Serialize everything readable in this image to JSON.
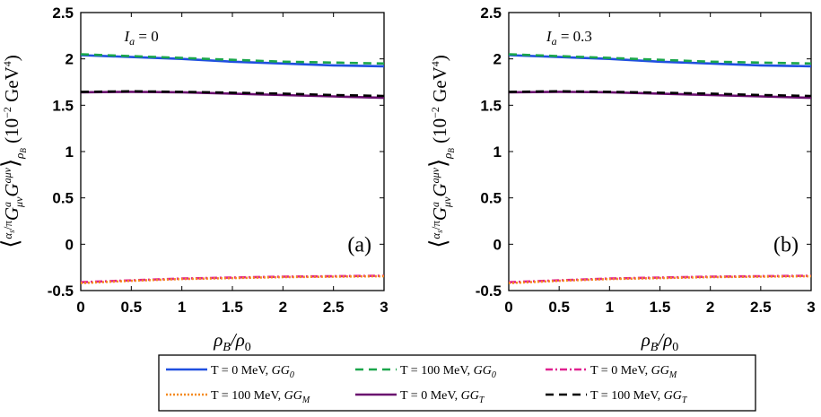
{
  "chart_data": [
    {
      "type": "line",
      "panel_label": "(a)",
      "annotation": "I_a = 0",
      "xlabel": "ρ_B/ρ_0",
      "ylabel": "⟨(α_s/π) G^a_μν G^aμν⟩_ρB  (10^-2 GeV^4)",
      "xlim": [
        0,
        3
      ],
      "ylim": [
        -0.5,
        2.5
      ],
      "xticks": [
        0,
        0.5,
        1,
        1.5,
        2,
        2.5,
        3
      ],
      "yticks": [
        -0.5,
        0,
        0.5,
        1,
        1.5,
        2,
        2.5
      ],
      "xtick_labels": [
        "0",
        "0.5",
        "1",
        "1.5",
        "2",
        "2.5",
        "3"
      ],
      "ytick_labels": [
        "-0.5",
        "0",
        "0.5",
        "1",
        "1.5",
        "2",
        "2.5"
      ],
      "grid": false,
      "x": [
        0,
        0.5,
        1,
        1.5,
        2,
        2.5,
        3
      ],
      "series": [
        {
          "name": "T = 0 MeV, GG_0",
          "values": [
            2.04,
            2.02,
            2.0,
            1.97,
            1.95,
            1.93,
            1.92
          ]
        },
        {
          "name": "T = 100 MeV, GG_0",
          "values": [
            2.05,
            2.03,
            2.01,
            1.99,
            1.97,
            1.96,
            1.95
          ]
        },
        {
          "name": "T = 0 MeV, GG_M",
          "values": [
            -0.41,
            -0.39,
            -0.37,
            -0.36,
            -0.35,
            -0.345,
            -0.34
          ]
        },
        {
          "name": "T = 100 MeV, GG_M",
          "values": [
            -0.42,
            -0.395,
            -0.375,
            -0.365,
            -0.355,
            -0.35,
            -0.345
          ]
        },
        {
          "name": "T = 0 MeV, GG_T",
          "values": [
            1.64,
            1.645,
            1.64,
            1.625,
            1.61,
            1.595,
            1.58
          ]
        },
        {
          "name": "T = 100 MeV, GG_T",
          "values": [
            1.645,
            1.65,
            1.645,
            1.635,
            1.625,
            1.61,
            1.6
          ]
        }
      ]
    },
    {
      "type": "line",
      "panel_label": "(b)",
      "annotation": "I_a = 0.3",
      "xlabel": "ρ_B/ρ_0",
      "ylabel": "⟨(α_s/π) G^a_μν G^aμν⟩_ρB  (10^-2 GeV^4)",
      "xlim": [
        0,
        3
      ],
      "ylim": [
        -0.5,
        2.5
      ],
      "xticks": [
        0,
        0.5,
        1,
        1.5,
        2,
        2.5,
        3
      ],
      "yticks": [
        -0.5,
        0,
        0.5,
        1,
        1.5,
        2,
        2.5
      ],
      "xtick_labels": [
        "0",
        "0.5",
        "1",
        "1.5",
        "2",
        "2.5",
        "3"
      ],
      "ytick_labels": [
        "-0.5",
        "0",
        "0.5",
        "1",
        "1.5",
        "2",
        "2.5"
      ],
      "grid": false,
      "x": [
        0,
        0.5,
        1,
        1.5,
        2,
        2.5,
        3
      ],
      "series": [
        {
          "name": "T = 0 MeV, GG_0",
          "values": [
            2.04,
            2.02,
            2.0,
            1.97,
            1.95,
            1.93,
            1.92
          ]
        },
        {
          "name": "T = 100 MeV, GG_0",
          "values": [
            2.05,
            2.03,
            2.01,
            1.99,
            1.97,
            1.96,
            1.95
          ]
        },
        {
          "name": "T = 0 MeV, GG_M",
          "values": [
            -0.41,
            -0.39,
            -0.37,
            -0.36,
            -0.35,
            -0.345,
            -0.34
          ]
        },
        {
          "name": "T = 100 MeV, GG_M",
          "values": [
            -0.42,
            -0.395,
            -0.375,
            -0.365,
            -0.355,
            -0.35,
            -0.345
          ]
        },
        {
          "name": "T = 0 MeV, GG_T",
          "values": [
            1.64,
            1.645,
            1.64,
            1.625,
            1.61,
            1.595,
            1.58
          ]
        },
        {
          "name": "T = 100 MeV, GG_T",
          "values": [
            1.645,
            1.65,
            1.645,
            1.635,
            1.625,
            1.61,
            1.6
          ]
        }
      ]
    }
  ],
  "series_styles": [
    {
      "color": "#1f4fe0",
      "dash": ""
    },
    {
      "color": "#1aa64b",
      "dash": "9,6"
    },
    {
      "color": "#e0208f",
      "dash": "8,3,2,3"
    },
    {
      "color": "#f58b1f",
      "dash": "2,2"
    },
    {
      "color": "#6a0f6f",
      "dash": ""
    },
    {
      "color": "#000000",
      "dash": "9,6"
    }
  ],
  "legend": {
    "placement": "bottom-center",
    "entries": [
      {
        "prefix": "T = 0 MeV, ",
        "math": "GG",
        "sub": "0"
      },
      {
        "prefix": "T = 100 MeV, ",
        "math": "GG",
        "sub": "0"
      },
      {
        "prefix": "T = 0 MeV, ",
        "math": "GG",
        "sub": "M"
      },
      {
        "prefix": "T = 100 MeV, ",
        "math": "GG",
        "sub": "M"
      },
      {
        "prefix": "T = 0 MeV, ",
        "math": "GG",
        "sub": "T"
      },
      {
        "prefix": "T = 100 MeV, ",
        "math": "GG",
        "sub": "T"
      }
    ]
  }
}
